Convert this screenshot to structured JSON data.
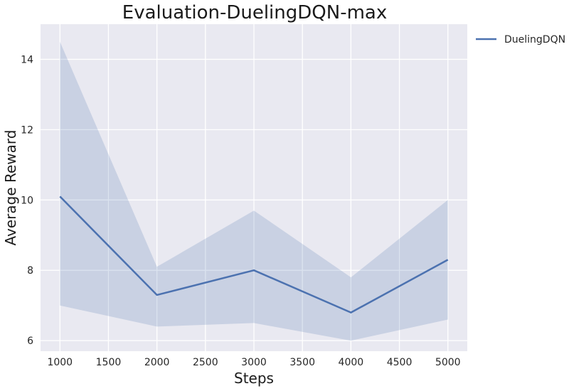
{
  "chart_data": {
    "type": "line",
    "title": "Evaluation-DuelingDQN-max",
    "xlabel": "Steps",
    "ylabel": "Average Reward",
    "xlim": [
      800,
      5200
    ],
    "ylim": [
      5.7,
      15.0
    ],
    "xticks": [
      1000,
      1500,
      2000,
      2500,
      3000,
      3500,
      4000,
      4500,
      5000
    ],
    "yticks": [
      6,
      8,
      10,
      12,
      14
    ],
    "grid": true,
    "legend_position": "outside-top-right",
    "x": [
      1000,
      2000,
      3000,
      4000,
      5000
    ],
    "series": [
      {
        "name": "DuelingDQN",
        "color": "#4c72b0",
        "values": [
          10.1,
          7.3,
          8.0,
          6.8,
          8.3
        ],
        "band_lower": [
          7.0,
          6.4,
          6.5,
          6.0,
          6.6
        ],
        "band_upper": [
          14.5,
          8.1,
          9.7,
          7.8,
          10.0
        ]
      }
    ],
    "colors": {
      "plot_background": "#e9e9f1",
      "grid": "#ffffff",
      "band": "#4c72b0"
    }
  }
}
